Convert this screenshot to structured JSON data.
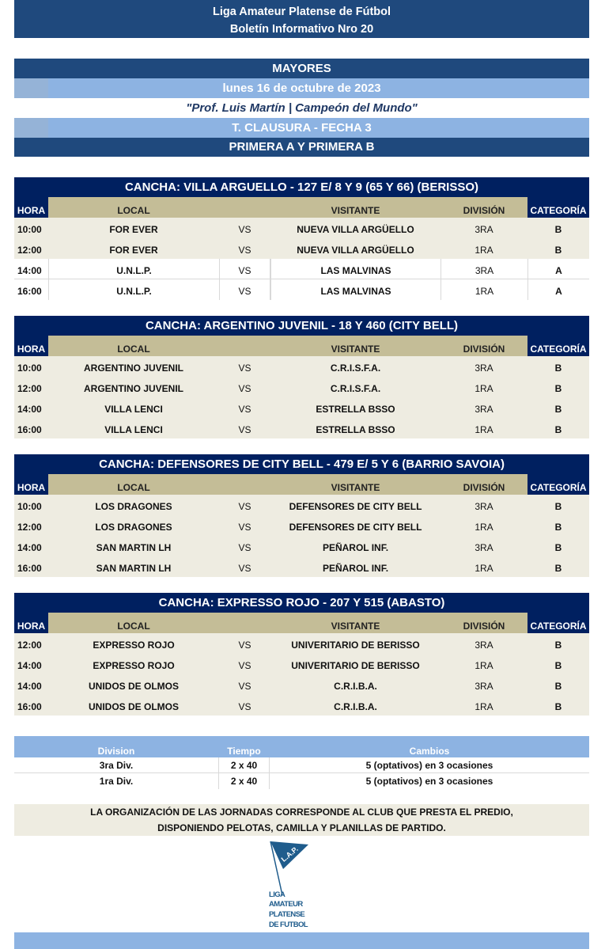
{
  "header": {
    "league": "Liga Amateur Platense de Fútbol",
    "bulletin": "Boletín Informativo Nro 20"
  },
  "info": {
    "category": "MAYORES",
    "date": "lunes 16 de octubre de 2023",
    "dedication": "\"Prof. Luis Martín | Campeón del Mundo\"",
    "tournament": "T. CLAUSURA - FECHA 3",
    "divisions": "PRIMERA A Y PRIMERA B"
  },
  "columns": {
    "hora": "HORA",
    "local": "LOCAL",
    "visitante": "VISITANTE",
    "division": "DIVISIÓN",
    "categoria": "CATEGORÍA",
    "vs": "VS"
  },
  "colors": {
    "navy": "#1f497d",
    "dark_navy": "#002060",
    "light_blue": "#8db3e2",
    "tan": "#c4bd97",
    "beige": "#eeece1"
  },
  "venues": [
    {
      "title": "CANCHA: VILLA ARGUELLO - 127 E/ 8 Y 9 (65 Y 66) (BERISSO)",
      "matches": [
        {
          "hora": "10:00",
          "local": "FOR EVER",
          "visitante": "NUEVA VILLA ARGÜELLO",
          "division": "3RA",
          "categoria": "B"
        },
        {
          "hora": "12:00",
          "local": "FOR EVER",
          "visitante": "NUEVA VILLA ARGÜELLO",
          "division": "1RA",
          "categoria": "B"
        },
        {
          "hora": "14:00",
          "local": "U.N.L.P.",
          "visitante": "LAS MALVINAS",
          "division": "3RA",
          "categoria": "A"
        },
        {
          "hora": "16:00",
          "local": "U.N.L.P.",
          "visitante": "LAS MALVINAS",
          "division": "1RA",
          "categoria": "A"
        }
      ]
    },
    {
      "title": "CANCHA: ARGENTINO JUVENIL - 18 Y 460 (CITY BELL)",
      "matches": [
        {
          "hora": "10:00",
          "local": "ARGENTINO JUVENIL",
          "visitante": "C.R.I.S.F.A.",
          "division": "3RA",
          "categoria": "B"
        },
        {
          "hora": "12:00",
          "local": "ARGENTINO JUVENIL",
          "visitante": "C.R.I.S.F.A.",
          "division": "1RA",
          "categoria": "B"
        },
        {
          "hora": "14:00",
          "local": "VILLA LENCI",
          "visitante": "ESTRELLA BSSO",
          "division": "3RA",
          "categoria": "B"
        },
        {
          "hora": "16:00",
          "local": "VILLA LENCI",
          "visitante": "ESTRELLA BSSO",
          "division": "1RA",
          "categoria": "B"
        }
      ]
    },
    {
      "title": "CANCHA: DEFENSORES DE CITY BELL - 479 E/ 5 Y 6 (BARRIO SAVOIA)",
      "matches": [
        {
          "hora": "10:00",
          "local": "LOS DRAGONES",
          "visitante": "DEFENSORES DE CITY BELL",
          "division": "3RA",
          "categoria": "B"
        },
        {
          "hora": "12:00",
          "local": "LOS DRAGONES",
          "visitante": "DEFENSORES DE CITY BELL",
          "division": "1RA",
          "categoria": "B"
        },
        {
          "hora": "14:00",
          "local": "SAN MARTIN LH",
          "visitante": "PEÑAROL INF.",
          "division": "3RA",
          "categoria": "B"
        },
        {
          "hora": "16:00",
          "local": "SAN MARTIN LH",
          "visitante": "PEÑAROL INF.",
          "division": "1RA",
          "categoria": "B"
        }
      ]
    },
    {
      "title": "CANCHA: EXPRESSO ROJO - 207 Y 515 (ABASTO)",
      "matches": [
        {
          "hora": "12:00",
          "local": "EXPRESSO ROJO",
          "visitante": "UNIVERITARIO DE BERISSO",
          "division": "3RA",
          "categoria": "B"
        },
        {
          "hora": "14:00",
          "local": "EXPRESSO ROJO",
          "visitante": "UNIVERITARIO DE BERISSO",
          "division": "1RA",
          "categoria": "B"
        },
        {
          "hora": "14:00",
          "local": "UNIDOS DE OLMOS",
          "visitante": "C.R.I.B.A.",
          "division": "3RA",
          "categoria": "B"
        },
        {
          "hora": "16:00",
          "local": "UNIDOS DE OLMOS",
          "visitante": "C.R.I.B.A.",
          "division": "1RA",
          "categoria": "B"
        }
      ]
    }
  ],
  "rules": {
    "headers": [
      "Division",
      "Tiempo",
      "Cambios"
    ],
    "rows": [
      [
        "3ra Div.",
        "2 x 40",
        "5 (optativos) en 3 ocasiones"
      ],
      [
        "1ra Div.",
        "2 x 40",
        "5 (optativos) en 3 ocasiones"
      ]
    ]
  },
  "note": {
    "line1": "LA ORGANIZACIÓN DE LAS JORNADAS CORRESPONDE AL CLUB QUE PRESTA EL PREDIO,",
    "line2": "DISPONIENDO PELOTAS, CAMILLA Y PLANILLAS DE PARTIDO."
  },
  "logo": {
    "flag_text": "L.A.P.",
    "lines": [
      "LIGA",
      "AMATEUR",
      "PLATENSE",
      "DE  FUTBOL"
    ]
  }
}
